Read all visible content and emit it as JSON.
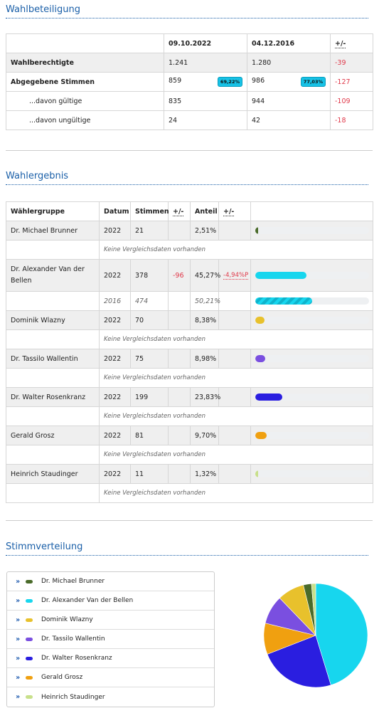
{
  "turnout": {
    "title": "Wahlbeteiligung",
    "headers": [
      "",
      "09.10.2022",
      "04.12.2016",
      "+/-"
    ],
    "rows": [
      {
        "label": "Wahlberechtigte",
        "v1": "1.241",
        "v2": "1.280",
        "diff": "-39",
        "bold": true,
        "indent": false
      },
      {
        "label": "Abgegebene Stimmen",
        "v1": "859",
        "b1": "69,22%",
        "v2": "986",
        "b2": "77,03%",
        "diff": "-127",
        "bold": true,
        "indent": false
      },
      {
        "label": "...davon gültige",
        "v1": "835",
        "v2": "944",
        "diff": "-109",
        "bold": false,
        "indent": true
      },
      {
        "label": "...davon ungültige",
        "v1": "24",
        "v2": "42",
        "diff": "-18",
        "bold": false,
        "indent": true
      }
    ]
  },
  "result": {
    "title": "Wahlergebnis",
    "headers": [
      "Wählergruppe",
      "Datum",
      "Stimmen",
      "+/-",
      "Anteil",
      "+/-",
      ""
    ],
    "no_compare": "Keine Vergleichsdaten vorhanden",
    "rows": [
      {
        "name": "Dr. Michael Brunner",
        "year": "2022",
        "votes": "21",
        "diff": "",
        "share": "2,51%",
        "sdiff": "",
        "pct": 2.51,
        "color": "#4a6b2a"
      },
      {
        "name": "Dr. Alexander Van der Bellen",
        "year": "2022",
        "votes": "378",
        "diff": "-96",
        "share": "45,27%",
        "sdiff": "-4,94%P",
        "pct": 45.27,
        "color": "#17d6ee",
        "prev": {
          "year": "2016",
          "votes": "474",
          "share": "50,21%",
          "pct": 50.21
        }
      },
      {
        "name": "Dominik Wlazny",
        "year": "2022",
        "votes": "70",
        "diff": "",
        "share": "8,38%",
        "sdiff": "",
        "pct": 8.38,
        "color": "#e8c12c"
      },
      {
        "name": "Dr. Tassilo Wallentin",
        "year": "2022",
        "votes": "75",
        "diff": "",
        "share": "8,98%",
        "sdiff": "",
        "pct": 8.98,
        "color": "#7a4fe0"
      },
      {
        "name": "Dr. Walter Rosenkranz",
        "year": "2022",
        "votes": "199",
        "diff": "",
        "share": "23,83%",
        "sdiff": "",
        "pct": 23.83,
        "color": "#2a1ee0"
      },
      {
        "name": "Gerald Grosz",
        "year": "2022",
        "votes": "81",
        "diff": "",
        "share": "9,70%",
        "sdiff": "",
        "pct": 9.7,
        "color": "#f0a010"
      },
      {
        "name": "Heinrich Staudinger",
        "year": "2022",
        "votes": "11",
        "diff": "",
        "share": "1,32%",
        "sdiff": "",
        "pct": 1.32,
        "color": "#c8e08a"
      }
    ]
  },
  "distribution": {
    "title": "Stimmverteilung"
  },
  "chart_data": {
    "type": "pie",
    "categories": [
      "Dr. Michael Brunner",
      "Dr. Alexander Van der Bellen",
      "Dominik Wlazny",
      "Dr. Tassilo Wallentin",
      "Dr. Walter Rosenkranz",
      "Gerald Grosz",
      "Heinrich Staudinger"
    ],
    "values": [
      2.51,
      45.27,
      8.38,
      8.98,
      23.83,
      9.7,
      1.32
    ],
    "colors": [
      "#4a6b2a",
      "#17d6ee",
      "#e8c12c",
      "#7a4fe0",
      "#2a1ee0",
      "#f0a010",
      "#c8e08a"
    ],
    "title": "",
    "legend": "left"
  }
}
